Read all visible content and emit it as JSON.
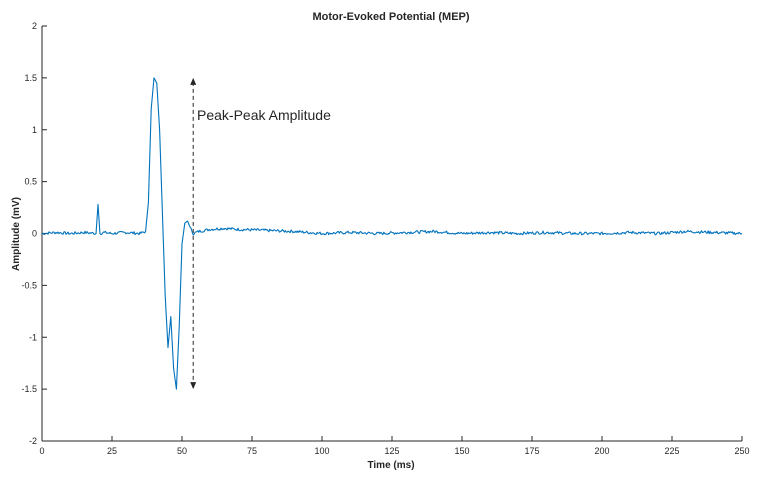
{
  "chart_data": {
    "type": "line",
    "title": "Motor-Evoked Potential (MEP)",
    "xlabel": "Time (ms)",
    "ylabel": "Amplitude (mV)",
    "xlim": [
      0,
      250
    ],
    "ylim": [
      -2,
      2
    ],
    "xticks": [
      "0",
      "25",
      "50",
      "75",
      "100",
      "125",
      "150",
      "175",
      "200",
      "225",
      "250"
    ],
    "yticks": [
      "-2",
      "-1.5",
      "-1",
      "-0.5",
      "0",
      "0.5",
      "1",
      "1.5",
      "2"
    ],
    "grid": false,
    "legend": "none",
    "series": [
      {
        "color": "#0072BD",
        "x": [
          0,
          5,
          10,
          15,
          19.3,
          20,
          20.7,
          22,
          25,
          30,
          35,
          37,
          38,
          39,
          40,
          41,
          42,
          43,
          44,
          45,
          46,
          47,
          48,
          49,
          50,
          51,
          52,
          53,
          54,
          56,
          60,
          65,
          70,
          80,
          90,
          100,
          110,
          120,
          130,
          140,
          150,
          160,
          170,
          180,
          190,
          200,
          210,
          220,
          230,
          240,
          250
        ],
        "y": [
          0.0,
          0.01,
          0.0,
          0.01,
          0.0,
          0.28,
          0.0,
          0.01,
          0.0,
          0.01,
          0.0,
          0.02,
          0.3,
          1.2,
          1.5,
          1.45,
          1.0,
          0.2,
          -0.6,
          -1.1,
          -0.8,
          -1.3,
          -1.5,
          -0.9,
          -0.1,
          0.1,
          0.12,
          0.05,
          0.0,
          0.02,
          0.04,
          0.05,
          0.04,
          0.03,
          0.02,
          0.0,
          0.01,
          0.0,
          0.01,
          0.02,
          0.0,
          0.01,
          0.0,
          0.01,
          0.0,
          0.0,
          0.01,
          0.0,
          0.02,
          0.01,
          0.0
        ]
      }
    ],
    "annotations": [
      {
        "text": "Peak-Peak Amplitude",
        "arrow_x": 54,
        "arrow_from": -1.5,
        "arrow_to": 1.5
      }
    ]
  }
}
